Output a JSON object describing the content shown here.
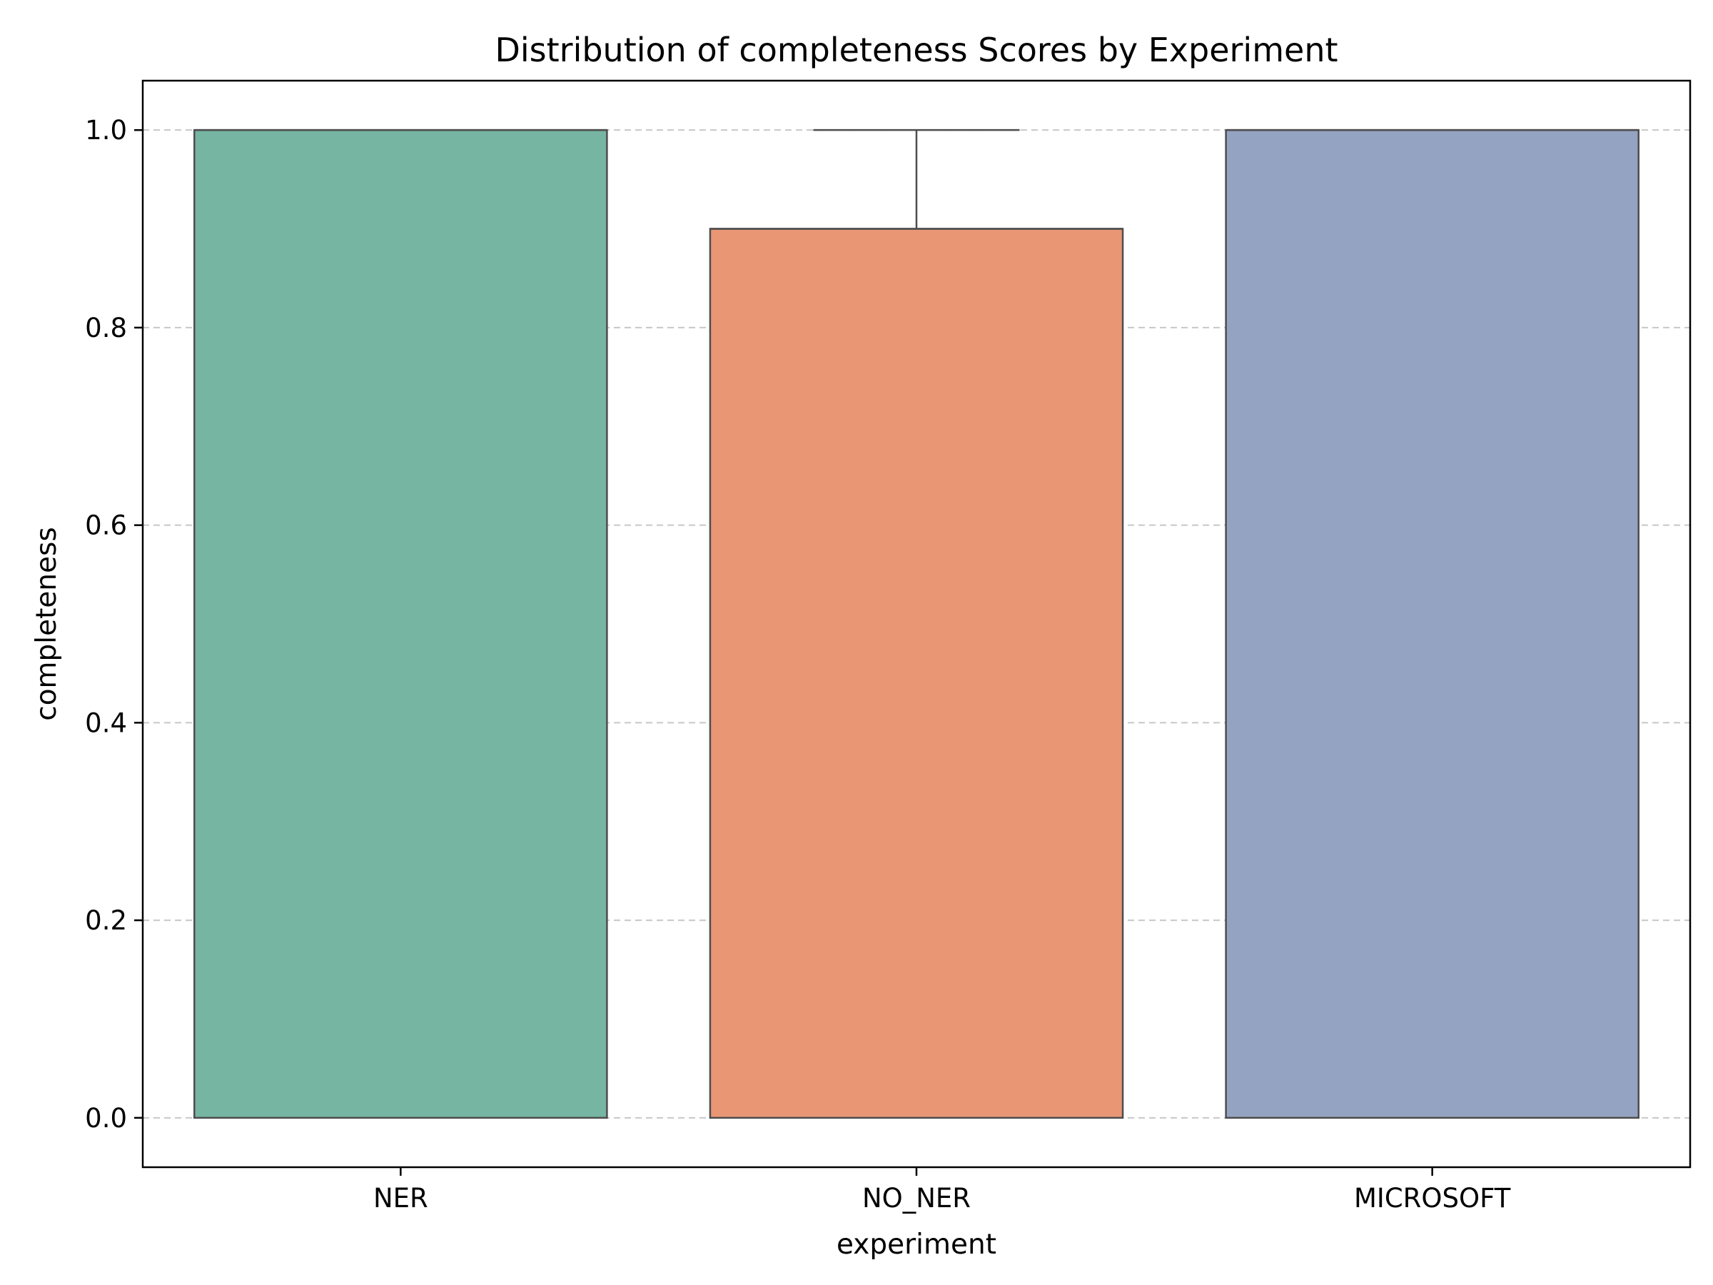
{
  "chart_data": {
    "type": "box",
    "title": "Distribution of completeness Scores by Experiment",
    "xlabel": "experiment",
    "ylabel": "completeness",
    "ylim": [
      -0.05,
      1.05
    ],
    "yticks": [
      "0.0",
      "0.2",
      "0.4",
      "0.6",
      "0.8",
      "1.0"
    ],
    "grid": "y-dashed",
    "categories": [
      "NER",
      "NO_NER",
      "MICROSOFT"
    ],
    "boxes": [
      {
        "category": "NER",
        "whisker_low": 0.0,
        "q1": 0.0,
        "median": 1.0,
        "q3": 1.0,
        "whisker_high": 1.0,
        "color": "#76b5a1"
      },
      {
        "category": "NO_NER",
        "whisker_low": 0.0,
        "q1": 0.0,
        "median": 0.9,
        "q3": 0.9,
        "whisker_high": 1.0,
        "color": "#e99675"
      },
      {
        "category": "MICROSOFT",
        "whisker_low": 0.0,
        "q1": 0.0,
        "median": 1.0,
        "q3": 1.0,
        "whisker_high": 1.0,
        "color": "#95a3c2"
      }
    ],
    "edge_color": "#4d4d4d"
  }
}
